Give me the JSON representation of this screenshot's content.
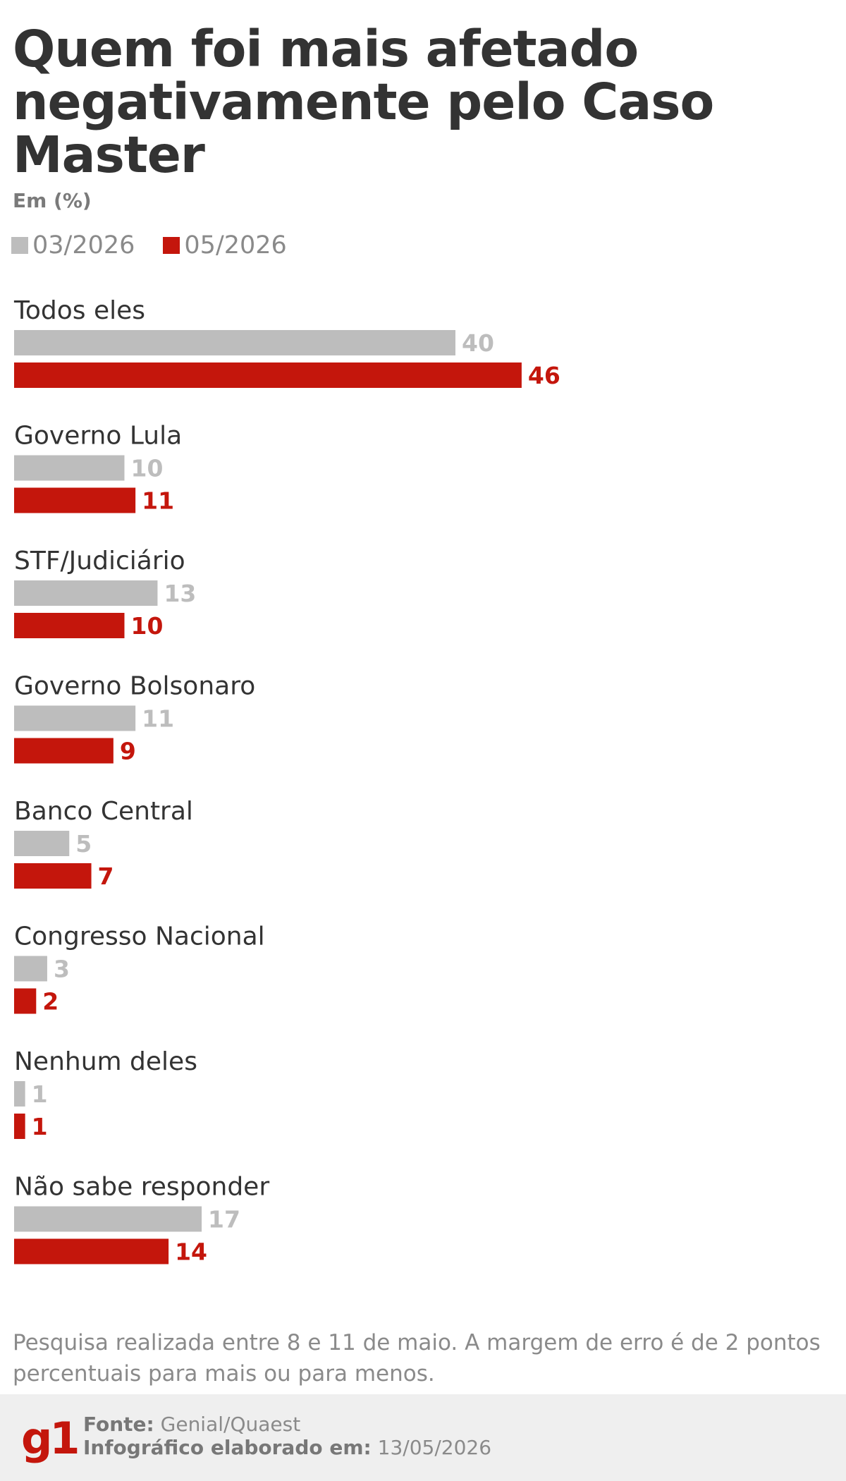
{
  "title": "Quem foi mais afetado negativamente pelo Caso Master",
  "unit_label": "Em (%)",
  "colors": {
    "series_a": "#bdbdbd",
    "series_b": "#c4160c",
    "title": "#333333"
  },
  "chart_data": {
    "type": "bar",
    "orientation": "horizontal",
    "title": "Quem foi mais afetado negativamente pelo Caso Master",
    "subtitle": "Em (%)",
    "legend_placement": "top-left",
    "grid": false,
    "categories": [
      "Todos eles",
      "Governo Lula",
      "STF/Judiciário",
      "Governo Bolsonaro",
      "Banco Central",
      "Congresso Nacional",
      "Nenhum deles",
      "Não sabe responder"
    ],
    "series": [
      {
        "name": "03/2026",
        "color": "#bdbdbd",
        "values": [
          40,
          10,
          13,
          11,
          5,
          3,
          1,
          17
        ]
      },
      {
        "name": "05/2026",
        "color": "#c4160c",
        "values": [
          46,
          11,
          10,
          9,
          7,
          2,
          1,
          14
        ]
      }
    ],
    "xlim": [
      0,
      100
    ]
  },
  "footnote": "Pesquisa realizada entre 8 e 11 de maio. A margem de erro é de 2 pontos percentuais para mais ou para menos.",
  "footer": {
    "logo_text": "g1",
    "source_label": "Fonte:",
    "source_value": "Genial/Quaest",
    "date_label": "Infográfico elaborado em:",
    "date_value": "13/05/2026"
  }
}
